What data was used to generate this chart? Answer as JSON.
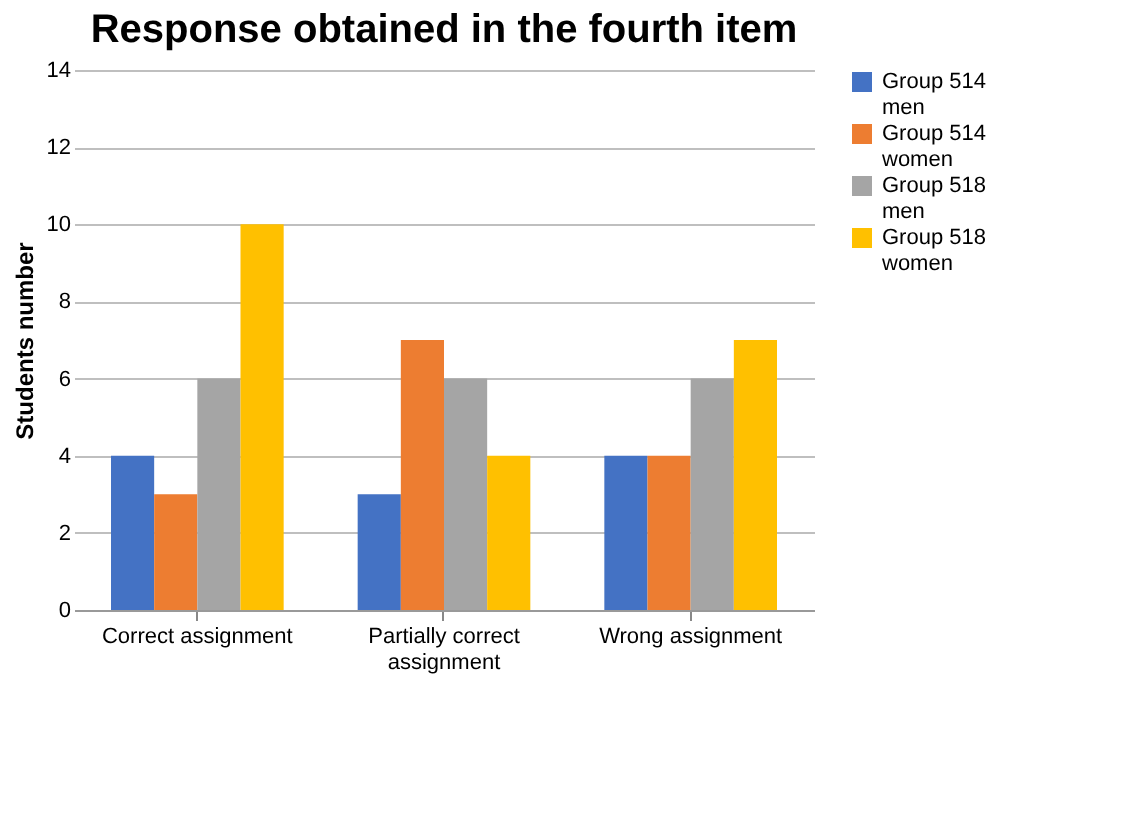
{
  "chart_data": {
    "type": "bar",
    "title": "Response obtained in the fourth item",
    "ylabel": "Students number",
    "categories": [
      "Correct assignment",
      "Partially correct assignment",
      "Wrong assignment"
    ],
    "series": [
      {
        "name": "Group 514 men",
        "color": "#4472c4",
        "values": [
          4,
          3,
          4
        ]
      },
      {
        "name": "Group 514 women",
        "color": "#ed7d31",
        "values": [
          3,
          7,
          4
        ]
      },
      {
        "name": "Group 518 men",
        "color": "#a5a5a5",
        "values": [
          6,
          6,
          6
        ]
      },
      {
        "name": "Group 518 women",
        "color": "#ffc000",
        "values": [
          10,
          4,
          7
        ]
      }
    ],
    "ylim": [
      0,
      14
    ],
    "yticks": [
      0,
      2,
      4,
      6,
      8,
      10,
      12,
      14
    ],
    "grid": "y",
    "legend": "right"
  }
}
